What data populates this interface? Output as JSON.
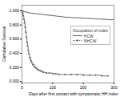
{
  "chart_data": {
    "type": "step",
    "xlabel": "Days after first contact with symptomatic HH index",
    "ylabel": "Cumulative Survival",
    "xlim": [
      0,
      300
    ],
    "ylim": [
      -0.02,
      1.08
    ],
    "xticks": [
      0,
      100,
      200,
      300
    ],
    "yticks": [
      {
        "value": 0.0,
        "label": "0.000"
      },
      {
        "value": 0.2,
        "label": "0.200"
      },
      {
        "value": 0.4,
        "label": "0.400"
      },
      {
        "value": 0.6,
        "label": "0.600"
      },
      {
        "value": 0.8,
        "label": "0.800"
      },
      {
        "value": 1.0,
        "label": "1.000"
      }
    ],
    "grid": false,
    "legend": "right",
    "legend_title": "Occupation of index",
    "series": [
      {
        "name": "HCW",
        "color": "#666666",
        "line_style": "solid",
        "x": [
          0,
          3,
          5,
          10,
          15,
          20,
          25,
          30,
          40,
          50,
          60,
          70,
          80,
          90,
          100,
          110,
          120,
          130,
          140,
          160,
          180,
          200,
          220,
          240,
          260,
          280,
          300
        ],
        "values": [
          1.0,
          1.0,
          0.99,
          0.985,
          0.98,
          0.975,
          0.97,
          0.965,
          0.96,
          0.955,
          0.95,
          0.945,
          0.94,
          0.935,
          0.93,
          0.925,
          0.92,
          0.915,
          0.91,
          0.905,
          0.9,
          0.895,
          0.89,
          0.885,
          0.88,
          0.875,
          0.87
        ]
      },
      {
        "name": "NHCW",
        "color": "#666666",
        "line_style": "dotted",
        "marker": "square",
        "x": [
          0,
          2,
          4,
          6,
          8,
          10,
          12,
          14,
          16,
          18,
          20,
          22,
          25,
          28,
          31,
          35,
          40,
          45,
          50,
          55,
          60,
          65,
          70,
          80,
          90,
          100,
          110,
          120,
          140,
          160,
          180,
          200,
          220,
          240,
          260,
          280
        ],
        "values": [
          1.0,
          0.97,
          0.93,
          0.88,
          0.83,
          0.77,
          0.7,
          0.63,
          0.56,
          0.5,
          0.44,
          0.39,
          0.34,
          0.3,
          0.27,
          0.24,
          0.21,
          0.19,
          0.17,
          0.16,
          0.15,
          0.14,
          0.13,
          0.12,
          0.12,
          0.11,
          0.11,
          0.1,
          0.1,
          0.1,
          0.1,
          0.09,
          0.09,
          0.09,
          0.08,
          0.08
        ]
      }
    ]
  }
}
